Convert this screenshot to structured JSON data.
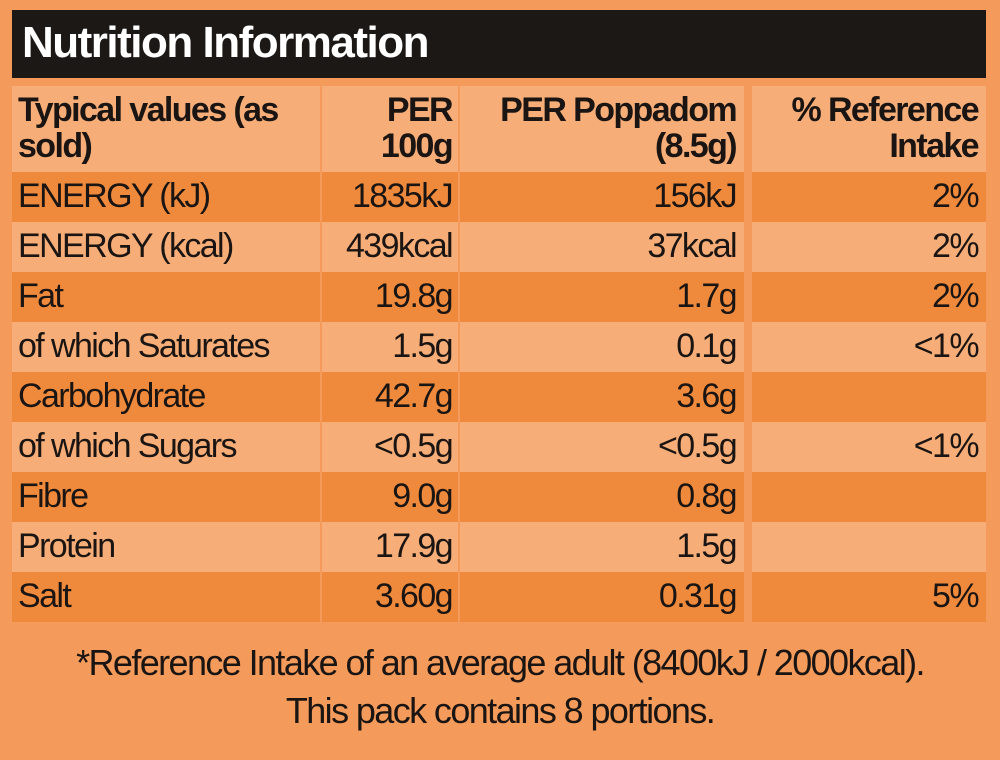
{
  "title": "Nutrition Information",
  "header": {
    "col0": "Typical values (as sold)",
    "col1": "PER 100g",
    "col2": "PER Poppadom (8.5g)",
    "col3": "% Reference Intake"
  },
  "rows": [
    {
      "label": "ENERGY (kJ)",
      "per100": "1835kJ",
      "perPoppadom": "156kJ",
      "ri": "2%"
    },
    {
      "label": "ENERGY (kcal)",
      "per100": "439kcal",
      "perPoppadom": "37kcal",
      "ri": "2%"
    },
    {
      "label": "Fat",
      "per100": "19.8g",
      "perPoppadom": "1.7g",
      "ri": "2%"
    },
    {
      "label": "of which Saturates",
      "per100": "1.5g",
      "perPoppadom": "0.1g",
      "ri": "<1%"
    },
    {
      "label": "Carbohydrate",
      "per100": "42.7g",
      "perPoppadom": "3.6g",
      "ri": ""
    },
    {
      "label": "of which Sugars",
      "per100": "<0.5g",
      "perPoppadom": "<0.5g",
      "ri": "<1%"
    },
    {
      "label": "Fibre",
      "per100": "9.0g",
      "perPoppadom": "0.8g",
      "ri": ""
    },
    {
      "label": "Protein",
      "per100": "17.9g",
      "perPoppadom": "1.5g",
      "ri": ""
    },
    {
      "label": "Salt",
      "per100": "3.60g",
      "perPoppadom": "0.31g",
      "ri": "5%"
    }
  ],
  "footer": {
    "line1": "*Reference Intake of an average adult (8400kJ / 2000kcal).",
    "line2": "This pack contains 8 portions."
  },
  "colors": {
    "background": "#f49a5a",
    "titleBar": "#1c1816",
    "rowDark": "#ef8a3c",
    "rowLight": "#f6ad78",
    "text": "#1a1512"
  }
}
